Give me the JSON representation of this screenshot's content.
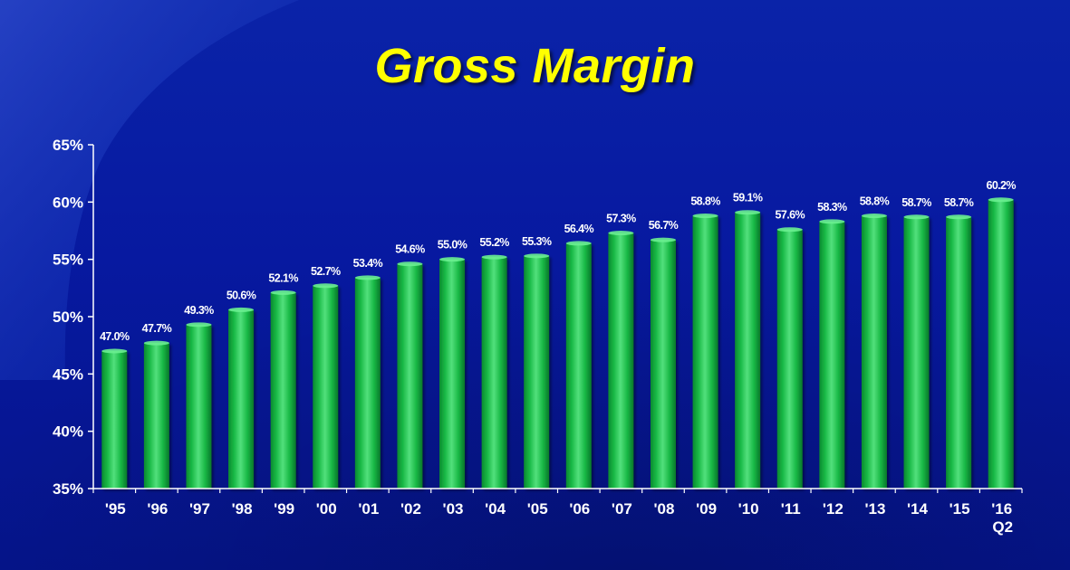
{
  "slide": {
    "title": "Gross Margin"
  },
  "colors": {
    "background": "#0719a0",
    "title": "#ffff00",
    "bar": "#12b03f",
    "bar_highlight": "#4fe27a",
    "bar_dark": "#0a7a2a",
    "axis": "#ffffff",
    "text": "#ffffff"
  },
  "chart_data": {
    "type": "bar",
    "title": "Gross Margin",
    "xlabel": "",
    "ylabel": "",
    "categories": [
      "'95",
      "'96",
      "'97",
      "'98",
      "'99",
      "'00",
      "'01",
      "'02",
      "'03",
      "'04",
      "'05",
      "'06",
      "'07",
      "'08",
      "'09",
      "'10",
      "'11",
      "'12",
      "'13",
      "'14",
      "'15",
      "'16"
    ],
    "category_sublabels": [
      "",
      "",
      "",
      "",
      "",
      "",
      "",
      "",
      "",
      "",
      "",
      "",
      "",
      "",
      "",
      "",
      "",
      "",
      "",
      "",
      "",
      "Q2"
    ],
    "values": [
      47.0,
      47.7,
      49.3,
      50.6,
      52.1,
      52.7,
      53.4,
      54.6,
      55.0,
      55.2,
      55.3,
      56.4,
      57.3,
      56.7,
      58.8,
      59.1,
      57.6,
      58.3,
      58.8,
      58.7,
      58.7,
      60.2
    ],
    "value_labels": [
      "47.0%",
      "47.7%",
      "49.3%",
      "50.6%",
      "52.1%",
      "52.7%",
      "53.4%",
      "54.6%",
      "55.0%",
      "55.2%",
      "55.3%",
      "56.4%",
      "57.3%",
      "56.7%",
      "58.8%",
      "59.1%",
      "57.6%",
      "58.3%",
      "58.8%",
      "58.7%",
      "58.7%",
      "60.2%"
    ],
    "ylim": [
      35,
      65
    ],
    "yticks": [
      35,
      40,
      45,
      50,
      55,
      60,
      65
    ],
    "ytick_labels": [
      "35%",
      "40%",
      "45%",
      "50%",
      "55%",
      "60%",
      "65%"
    ],
    "grid": false,
    "legend": "none"
  }
}
